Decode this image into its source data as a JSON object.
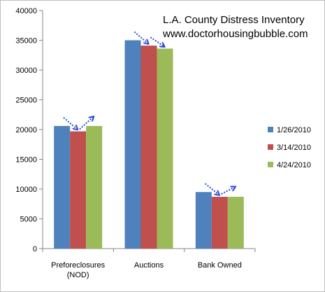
{
  "chart_data": {
    "type": "bar",
    "title": "L.A. County Distress Inventory",
    "subtitle": "www.doctorhousingbubble.com",
    "xlabel": "",
    "ylabel": "",
    "categories": [
      "Preforeclosures\n(NOD)",
      "Auctions",
      "Bank Owned"
    ],
    "series": [
      {
        "name": "1/26/2010",
        "color": "#4f81bd",
        "values": [
          20600,
          35000,
          9500
        ]
      },
      {
        "name": "3/14/2010",
        "color": "#c0504d",
        "values": [
          19700,
          34100,
          8700
        ]
      },
      {
        "name": "4/24/2010",
        "color": "#9bbb59",
        "values": [
          20600,
          33600,
          8700
        ]
      }
    ],
    "ylim": [
      0,
      40000
    ],
    "yticks": [
      0,
      5000,
      10000,
      15000,
      20000,
      25000,
      30000,
      35000,
      40000
    ],
    "grid": false,
    "legend_position": "right",
    "annotations": "dotted blue trend arrows between bars of each category",
    "arrow_color": "#2a4bd7"
  }
}
